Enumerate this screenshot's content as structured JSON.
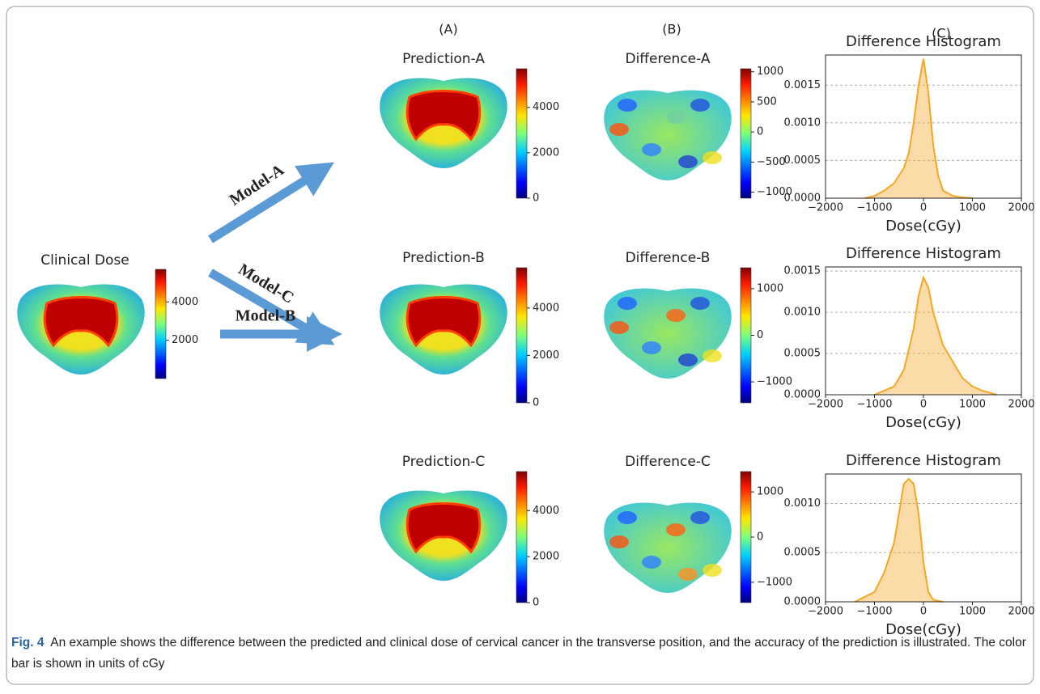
{
  "column_labels": [
    "(A)",
    "(B)",
    "(C)"
  ],
  "clinical": {
    "title": "Clinical Dose",
    "colorbar": {
      "lim": [
        0,
        5700
      ],
      "ticks": [
        2000,
        4000
      ]
    }
  },
  "rows": [
    {
      "model": "Model-A",
      "prediction": {
        "title": "Prediction-A",
        "colorbar": {
          "lim": [
            0,
            5700
          ],
          "ticks": [
            0,
            2000,
            4000
          ]
        }
      },
      "difference": {
        "title": "Difference-A",
        "colorbar": {
          "lim": [
            -1100,
            1050
          ],
          "ticks": [
            {
              "value": -1000,
              "label": "−1000"
            },
            {
              "value": -500,
              "label": "−500"
            },
            0,
            500,
            1000
          ]
        }
      },
      "histogram": {
        "type": "area",
        "title": "Difference Histogram",
        "xlabel": "Dose(cGy)",
        "color": "#f5a623",
        "grid": true,
        "xlim": [
          -2000,
          2000
        ],
        "xticks": [
          {
            "value": -2000,
            "label": "−2000"
          },
          {
            "value": -1000,
            "label": "−1000"
          },
          0,
          1000,
          2000
        ],
        "ylim": [
          0,
          0.0019
        ],
        "yticks": [
          {
            "value": 0,
            "label": "0.0000"
          },
          {
            "value": 0.0005,
            "label": "0.0005"
          },
          {
            "value": 0.001,
            "label": "0.0010"
          },
          {
            "value": 0.0015,
            "label": "0.0015"
          }
        ],
        "x": [
          -1200,
          -1000,
          -800,
          -600,
          -400,
          -300,
          -200,
          -100,
          0,
          100,
          200,
          300,
          400,
          600,
          800,
          1000
        ],
        "values": [
          0,
          3e-05,
          0.0001,
          0.0002,
          0.0004,
          0.0006,
          0.001,
          0.0015,
          0.00185,
          0.0014,
          0.0007,
          0.0003,
          0.0001,
          3e-05,
          1e-05,
          0
        ]
      }
    },
    {
      "model": "Model-B",
      "prediction": {
        "title": "Prediction-B",
        "colorbar": {
          "lim": [
            0,
            5700
          ],
          "ticks": [
            0,
            2000,
            4000
          ]
        }
      },
      "difference": {
        "title": "Difference-B",
        "colorbar": {
          "lim": [
            -1450,
            1450
          ],
          "ticks": [
            {
              "value": -1000,
              "label": "−1000"
            },
            0,
            1000
          ]
        }
      },
      "histogram": {
        "type": "area",
        "title": "Difference Histogram",
        "xlabel": "Dose(cGy)",
        "color": "#f5a623",
        "grid": true,
        "xlim": [
          -2000,
          2000
        ],
        "xticks": [
          {
            "value": -2000,
            "label": "−2000"
          },
          {
            "value": -1000,
            "label": "−1000"
          },
          0,
          1000,
          2000
        ],
        "ylim": [
          0,
          0.00155
        ],
        "yticks": [
          {
            "value": 0,
            "label": "0.0000"
          },
          {
            "value": 0.0005,
            "label": "0.0005"
          },
          {
            "value": 0.001,
            "label": "0.0010"
          },
          {
            "value": 0.0015,
            "label": "0.0015"
          }
        ],
        "x": [
          -1000,
          -800,
          -600,
          -400,
          -200,
          -100,
          0,
          100,
          200,
          400,
          600,
          800,
          1000,
          1200,
          1500
        ],
        "values": [
          0,
          5e-05,
          0.0001,
          0.0003,
          0.0008,
          0.0012,
          0.00142,
          0.0013,
          0.001,
          0.0006,
          0.0004,
          0.0002,
          0.0001,
          5e-05,
          0
        ]
      }
    },
    {
      "model": "Model-C",
      "prediction": {
        "title": "Prediction-C",
        "colorbar": {
          "lim": [
            0,
            5700
          ],
          "ticks": [
            0,
            2000,
            4000
          ]
        }
      },
      "difference": {
        "title": "Difference-C",
        "colorbar": {
          "lim": [
            -1450,
            1450
          ],
          "ticks": [
            {
              "value": -1000,
              "label": "−1000"
            },
            0,
            1000
          ]
        }
      },
      "histogram": {
        "type": "area",
        "title": "Difference Histogram",
        "xlabel": "Dose(cGy)",
        "color": "#f5a623",
        "grid": true,
        "xlim": [
          -2000,
          2000
        ],
        "xticks": [
          {
            "value": -2000,
            "label": "−2000"
          },
          {
            "value": -1000,
            "label": "−1000"
          },
          0,
          1000,
          2000
        ],
        "ylim": [
          0,
          0.0013
        ],
        "yticks": [
          {
            "value": 0,
            "label": "0.0000"
          },
          {
            "value": 0.0005,
            "label": "0.0005"
          },
          {
            "value": 0.001,
            "label": "0.0010"
          }
        ],
        "x": [
          -1400,
          -1200,
          -1000,
          -800,
          -600,
          -500,
          -400,
          -300,
          -200,
          -100,
          0,
          100,
          200,
          400
        ],
        "values": [
          0,
          5e-05,
          0.0001,
          0.0003,
          0.0006,
          0.0009,
          0.0012,
          0.00125,
          0.0012,
          0.0009,
          0.0004,
          0.0001,
          2e-05,
          0
        ]
      }
    }
  ],
  "caption": {
    "label": "Fig. 4",
    "text": "An example shows the difference between the predicted and clinical dose of cervical cancer in the transverse position, and the accuracy of the prediction is illustrated. The color bar is shown in units of cGy"
  }
}
